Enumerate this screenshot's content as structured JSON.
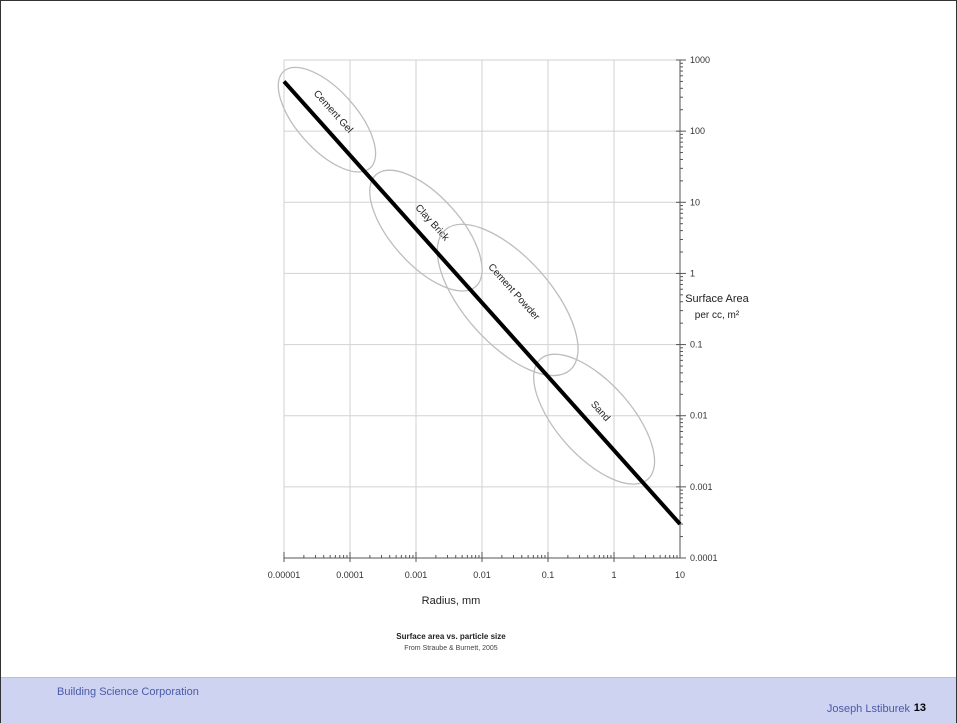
{
  "footer": {
    "organization": "Building Science Corporation",
    "author": "Joseph Lstiburek",
    "page_number": "13"
  },
  "chart_data": {
    "type": "line",
    "title": "Surface area vs. particle size",
    "subtitle": "From Straube & Burnett, 2005",
    "xlabel": "Radius, mm",
    "ylabel_line1": "Surface Area",
    "ylabel_line2": "per cc, m²",
    "x_scale": "log",
    "y_scale": "log",
    "xlim": [
      1e-05,
      10
    ],
    "ylim": [
      0.0001,
      1000
    ],
    "x_ticks": [
      "0.00001",
      "0.0001",
      "0.001",
      "0.01",
      "0.1",
      "1",
      "10"
    ],
    "y_ticks": [
      "1000",
      "100",
      "10",
      "1",
      "0.1",
      "0.01",
      "0.001",
      "0.0001"
    ],
    "grid": true,
    "series": [
      {
        "x": [
          1e-05,
          10
        ],
        "y": [
          500,
          0.0003
        ]
      }
    ],
    "regions": [
      {
        "label": "Cement Gel",
        "x_range": [
          1e-05,
          0.0002
        ],
        "y_range": [
          30,
          700
        ]
      },
      {
        "label": "Clay Brick",
        "x_range": [
          0.0002,
          0.01
        ],
        "y_range": [
          0.8,
          20
        ]
      },
      {
        "label": "Cement Powder",
        "x_range": [
          0.002,
          0.3
        ],
        "y_range": [
          0.06,
          3
        ]
      },
      {
        "label": "Sand",
        "x_range": [
          0.05,
          5
        ],
        "y_range": [
          0.002,
          0.04
        ]
      }
    ]
  }
}
